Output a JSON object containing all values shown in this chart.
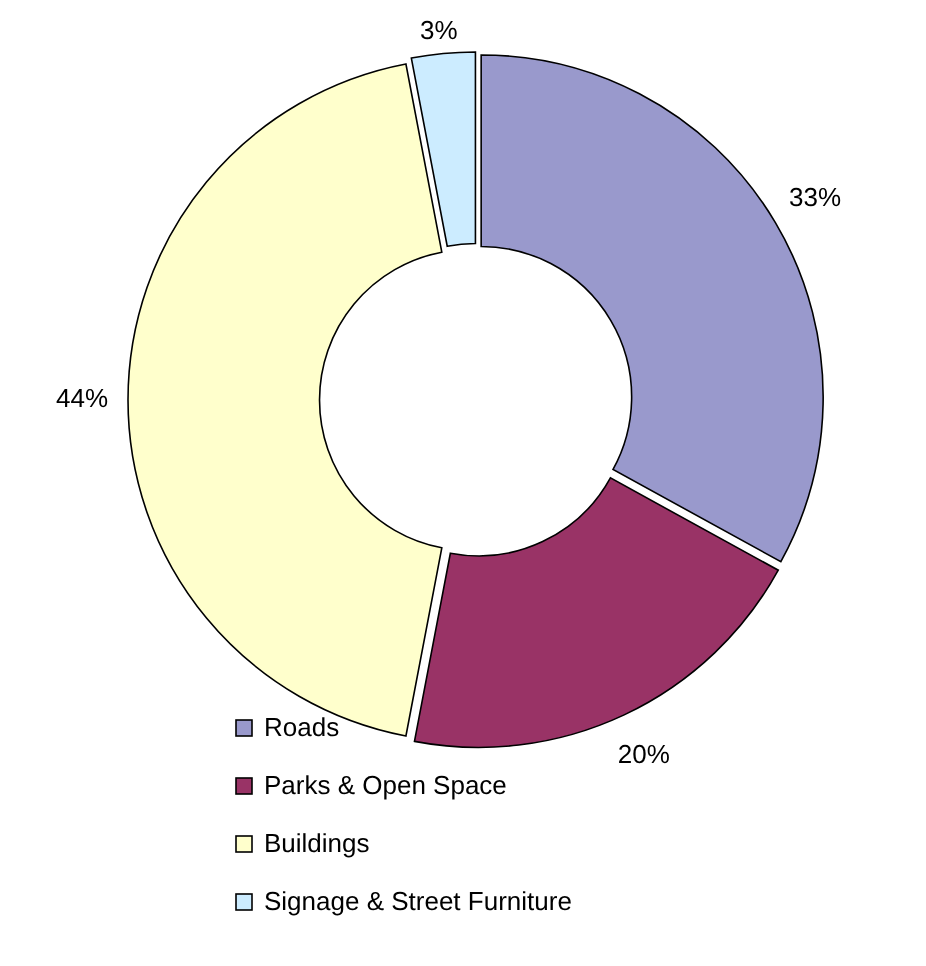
{
  "chart_data": {
    "type": "donut",
    "categories": [
      "Roads",
      "Parks & Open Space",
      "Buildings",
      "Signage & Street Furniture"
    ],
    "values": [
      33,
      20,
      44,
      3
    ],
    "colors": [
      "#9999cc",
      "#993366",
      "#ffffcc",
      "#ccecff"
    ],
    "value_labels": [
      "33%",
      "20%",
      "44%",
      "3%"
    ],
    "legend": "bottom"
  }
}
